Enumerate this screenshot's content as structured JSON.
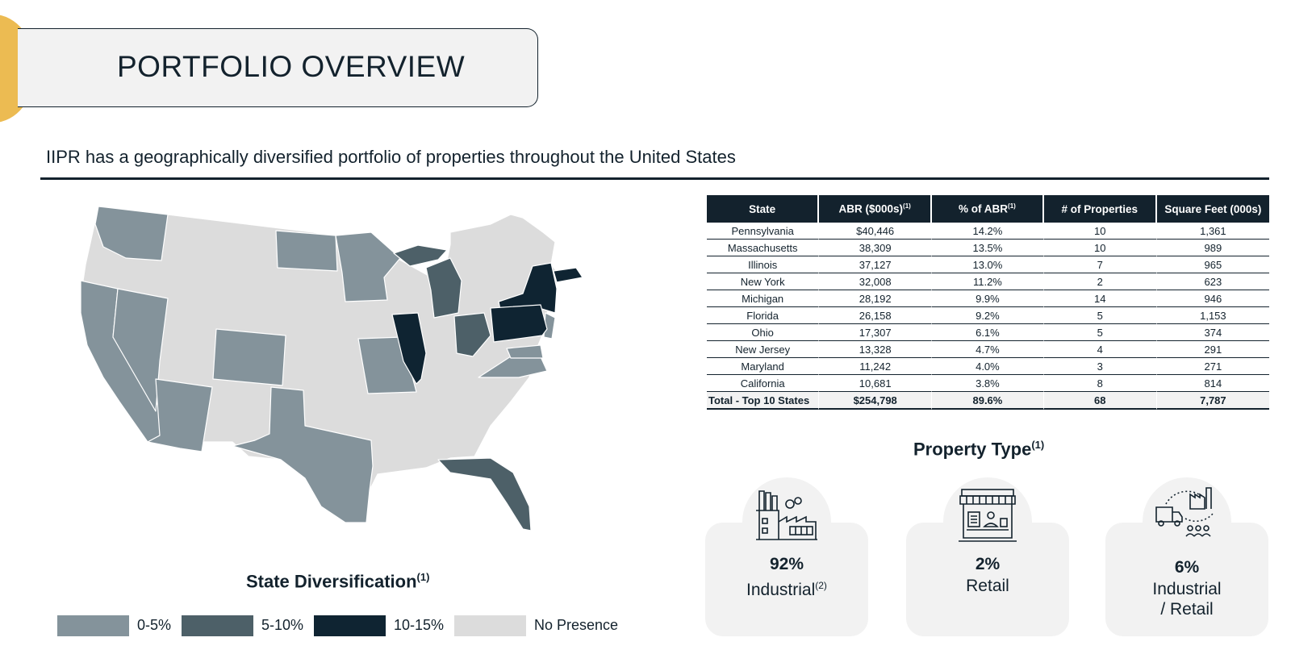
{
  "header": {
    "title": "PORTFOLIO OVERVIEW"
  },
  "subtitle": "IIPR has a geographically diversified portfolio of properties throughout the United States",
  "colors": {
    "accent": "#ecbb52",
    "navy": "#13222d",
    "tier_0_5": "#84939b",
    "tier_5_10": "#4d6068",
    "tier_10_15": "#0f2432",
    "no_presence": "#dcdcdc"
  },
  "map": {
    "title": "State Diversification",
    "title_note": "(1)",
    "legend": [
      {
        "label": "0-5%",
        "color": "#84939b"
      },
      {
        "label": "5-10%",
        "color": "#4d6068"
      },
      {
        "label": "10-15%",
        "color": "#0f2432"
      },
      {
        "label": "No Presence",
        "color": "#dcdcdc"
      }
    ]
  },
  "table": {
    "headers": [
      "State",
      "ABR ($000s)",
      "% of ABR",
      "# of Properties",
      "Square Feet (000s)"
    ],
    "header_notes": [
      "",
      "(1)",
      "(1)",
      "",
      ""
    ],
    "rows": [
      [
        "Pennsylvania",
        "$40,446",
        "14.2%",
        "10",
        "1,361"
      ],
      [
        "Massachusetts",
        "38,309",
        "13.5%",
        "10",
        "989"
      ],
      [
        "Illinois",
        "37,127",
        "13.0%",
        "7",
        "965"
      ],
      [
        "New York",
        "32,008",
        "11.2%",
        "2",
        "623"
      ],
      [
        "Michigan",
        "28,192",
        "9.9%",
        "14",
        "946"
      ],
      [
        "Florida",
        "26,158",
        "9.2%",
        "5",
        "1,153"
      ],
      [
        "Ohio",
        "17,307",
        "6.1%",
        "5",
        "374"
      ],
      [
        "New Jersey",
        "13,328",
        "4.7%",
        "4",
        "291"
      ],
      [
        "Maryland",
        "11,242",
        "4.0%",
        "3",
        "271"
      ],
      [
        "California",
        "10,681",
        "3.8%",
        "8",
        "814"
      ]
    ],
    "total": [
      "Total - Top 10 States",
      "$254,798",
      "89.6%",
      "68",
      "7,787"
    ]
  },
  "property_type": {
    "title": "Property Type",
    "title_note": "(1)",
    "cards": [
      {
        "pct": "92%",
        "label": "Industrial",
        "note": "(2)",
        "icon": "factory-icon"
      },
      {
        "pct": "2%",
        "label": "Retail",
        "note": "",
        "icon": "storefront-icon"
      },
      {
        "pct": "6%",
        "label_line1": "Industrial",
        "label_line2": "/ Retail",
        "icon": "logistics-icon"
      }
    ]
  }
}
